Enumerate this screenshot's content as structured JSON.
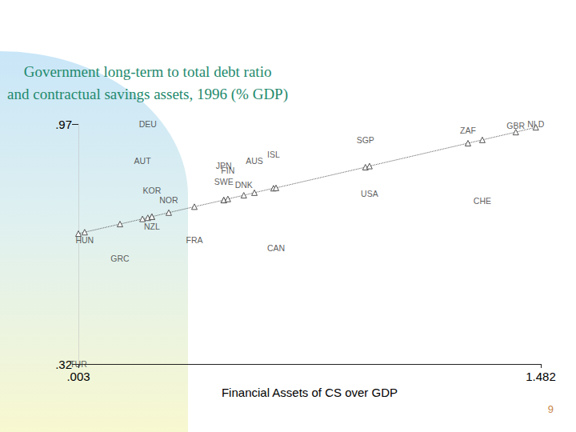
{
  "chart_data": {
    "type": "scatter",
    "title": "Government long-term to total debt ratio\nand contractual savings assets, 1996 (% GDP)",
    "x_label": "Financial Assets of CS over GDP",
    "page_label": "9",
    "xlim": [
      0.003,
      1.482
    ],
    "xticks": [
      {
        "value": 0.003,
        "label": ".003"
      },
      {
        "value": 1.482,
        "label": "1.482"
      }
    ],
    "ylim": [
      0.32,
      0.97
    ],
    "yticks": [
      {
        "value": 0.32,
        "label": ".32"
      },
      {
        "value": 0.97,
        "label": ".97"
      }
    ],
    "grid": false,
    "series": [
      {
        "type": "scatter",
        "marker": "none",
        "color": "#333333",
        "labels": [
          "DEU",
          "AUT",
          "JPN",
          "FIN",
          "AUS",
          "ISL",
          "SWE",
          "DNK",
          "SGP",
          "ZAF",
          "GBR",
          "NLD",
          "USA",
          "CHE",
          "KOR",
          "NOR",
          "NZL",
          "HUN",
          "FRA",
          "GRC",
          "CAN",
          "TUR"
        ],
        "x": [
          0.225,
          0.208,
          0.468,
          0.481,
          0.566,
          0.627,
          0.468,
          0.532,
          0.921,
          1.249,
          1.402,
          1.466,
          0.934,
          1.295,
          0.238,
          0.292,
          0.238,
          0.023,
          0.374,
          0.136,
          0.635,
          0.003
        ],
        "values": [
          0.97,
          0.87,
          0.857,
          0.844,
          0.87,
          0.888,
          0.814,
          0.805,
          0.927,
          0.953,
          0.966,
          0.97,
          0.781,
          0.762,
          0.79,
          0.764,
          0.693,
          0.656,
          0.656,
          0.606,
          0.634,
          0.32
        ]
      },
      {
        "type": "line",
        "marker": "triangle",
        "line_style": "dotted",
        "color": "#555555",
        "x": [
          0.003,
          0.023,
          0.136,
          0.208,
          0.225,
          0.238,
          0.238,
          0.292,
          0.374,
          0.468,
          0.468,
          0.481,
          0.532,
          0.566,
          0.627,
          0.635,
          0.921,
          0.934,
          1.249,
          1.295,
          1.402,
          1.466
        ],
        "values": [
          0.673,
          0.677,
          0.699,
          0.713,
          0.716,
          0.719,
          0.719,
          0.73,
          0.746,
          0.764,
          0.764,
          0.767,
          0.777,
          0.784,
          0.796,
          0.797,
          0.853,
          0.856,
          0.918,
          0.927,
          0.948,
          0.961
        ]
      }
    ]
  }
}
